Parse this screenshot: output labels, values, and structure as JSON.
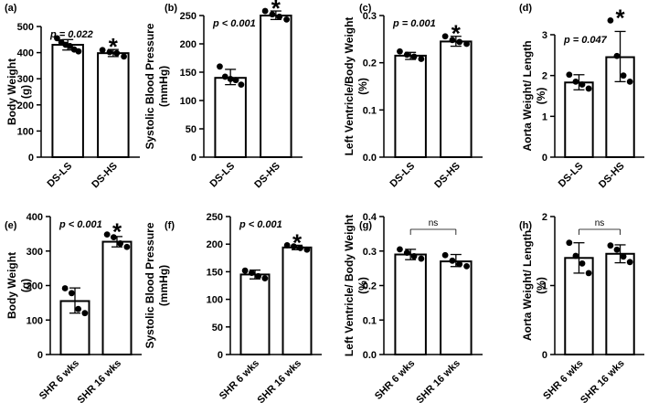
{
  "chart_data": [
    {
      "type": "bar",
      "panel": "(a)",
      "categories": [
        "DS-LS",
        "DS-HS"
      ],
      "values": [
        430,
        398
      ],
      "errors": [
        [
          410,
          450
        ],
        [
          385,
          412
        ]
      ],
      "points": [
        [
          455,
          440,
          430,
          425,
          412,
          405
        ],
        [
          410,
          402,
          398,
          385
        ]
      ],
      "ylabel": [
        "Body Weight",
        "(g)"
      ],
      "ylim": [
        0,
        500
      ],
      "yticks": [
        0,
        100,
        200,
        300,
        400,
        500
      ],
      "stat": "p = 0.022",
      "star": "*",
      "star_index": 1
    },
    {
      "type": "bar",
      "panel": "(b)",
      "categories": [
        "DS-LS",
        "DS-HS"
      ],
      "values": [
        140,
        250
      ],
      "errors": [
        [
          128,
          155
        ],
        [
          243,
          258
        ]
      ],
      "points": [
        [
          160,
          142,
          138,
          136,
          128
        ],
        [
          258,
          252,
          248,
          243
        ]
      ],
      "ylabel": [
        "Systolic Blood Pressure",
        "(mmHg)"
      ],
      "ylim": [
        0,
        250
      ],
      "yticks": [
        0,
        50,
        100,
        150,
        200,
        250
      ],
      "stat": "p < 0.001",
      "star": "*",
      "star_index": 1
    },
    {
      "type": "bar",
      "panel": "(c)",
      "categories": [
        "DS-LS",
        "DS-HS"
      ],
      "values": [
        0.215,
        0.245
      ],
      "errors": [
        [
          0.207,
          0.222
        ],
        [
          0.235,
          0.256
        ]
      ],
      "points": [
        [
          0.224,
          0.217,
          0.213,
          0.208
        ],
        [
          0.256,
          0.248,
          0.244,
          0.24
        ]
      ],
      "ylabel": [
        "Left Ventricle/Body Weight",
        "(%)"
      ],
      "ylim": [
        0,
        0.3
      ],
      "yticks": [
        0.0,
        0.1,
        0.2,
        0.3
      ],
      "ytick_labels": [
        "0.0",
        "0.1",
        "0.2",
        "0.3"
      ],
      "stat": "p = 0.001",
      "star": "*",
      "star_index": 1
    },
    {
      "type": "bar",
      "panel": "(d)",
      "categories": [
        "DS-LS",
        "DS-HS"
      ],
      "values": [
        1.83,
        2.45
      ],
      "errors": [
        [
          1.65,
          2.02
        ],
        [
          1.85,
          3.08
        ]
      ],
      "points": [
        [
          2.02,
          1.85,
          1.78,
          1.68
        ],
        [
          3.35,
          2.48,
          2.0,
          1.85
        ]
      ],
      "ylabel": [
        "Aorta Weight/ Length",
        "(%)"
      ],
      "ylim": [
        0,
        3
      ],
      "yticks": [
        0,
        1,
        2,
        3
      ],
      "stat": "p = 0.047",
      "star": "*",
      "star_index": 1
    },
    {
      "type": "bar",
      "panel": "(e)",
      "categories": [
        "SHR 6 wks",
        "SHR 16 wks"
      ],
      "values": [
        155,
        327
      ],
      "errors": [
        [
          120,
          193
        ],
        [
          312,
          342
        ]
      ],
      "points": [
        [
          192,
          178,
          132,
          120
        ],
        [
          348,
          340,
          322,
          312
        ]
      ],
      "ylabel": [
        "Body Weight",
        "(g)"
      ],
      "ylim": [
        0,
        400
      ],
      "yticks": [
        0,
        100,
        200,
        300,
        400
      ],
      "stat": "p < 0.001",
      "star": "*",
      "star_index": 1
    },
    {
      "type": "bar",
      "panel": "(f)",
      "categories": [
        "SHR 6 wks",
        "SHR 16 wks"
      ],
      "values": [
        145,
        194
      ],
      "errors": [
        [
          137,
          153
        ],
        [
          190,
          198
        ]
      ],
      "points": [
        [
          152,
          148,
          142,
          138
        ],
        [
          198,
          196,
          193,
          190
        ]
      ],
      "ylabel": [
        "Systolic Blood Pressure",
        "(mmHg)"
      ],
      "ylim": [
        0,
        250
      ],
      "yticks": [
        0,
        50,
        100,
        150,
        200,
        250
      ],
      "stat": "p < 0.001",
      "star": "*",
      "star_index": 1
    },
    {
      "type": "bar",
      "panel": "(g)",
      "categories": [
        "SHR 6 wks",
        "SHR 16 wks"
      ],
      "values": [
        0.29,
        0.27
      ],
      "errors": [
        [
          0.275,
          0.305
        ],
        [
          0.255,
          0.29
        ]
      ],
      "points": [
        [
          0.305,
          0.295,
          0.285,
          0.278
        ],
        [
          0.288,
          0.272,
          0.262,
          0.256
        ]
      ],
      "ylabel": [
        "Left Ventricle/ Body Weight",
        "(%)"
      ],
      "ylim": [
        0,
        0.4
      ],
      "yticks": [
        0.0,
        0.1,
        0.2,
        0.3,
        0.4
      ],
      "ytick_labels": [
        "0.0",
        "0.1",
        "0.2",
        "0.3",
        "0.4"
      ],
      "stat": "ns",
      "bracket": true
    },
    {
      "type": "bar",
      "panel": "(h)",
      "categories": [
        "SHR 6 wks",
        "SHR 16 wks"
      ],
      "values": [
        1.4,
        1.46
      ],
      "errors": [
        [
          1.18,
          1.62
        ],
        [
          1.33,
          1.59
        ]
      ],
      "points": [
        [
          1.62,
          1.43,
          1.32,
          1.18
        ],
        [
          1.58,
          1.52,
          1.42,
          1.34
        ]
      ],
      "ylabel": [
        "Aorta Weight/ Length",
        "(%)"
      ],
      "ylim": [
        0,
        2
      ],
      "yticks": [
        0,
        1,
        2
      ],
      "stat": "ns",
      "bracket": true
    }
  ]
}
